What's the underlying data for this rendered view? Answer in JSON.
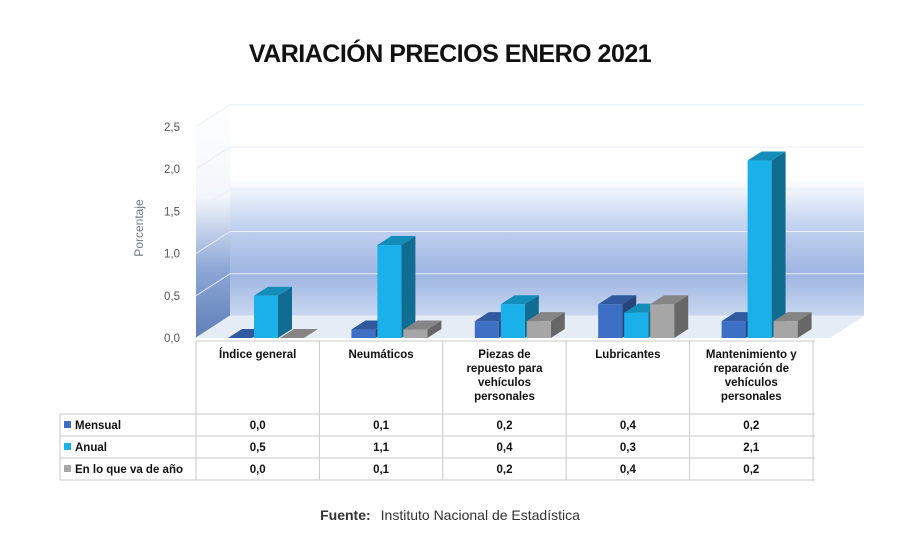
{
  "title": "VARIACIÓN PRECIOS ENERO 2021",
  "source_label": "Fuente:",
  "source_text": "Instituto Nacional de Estadística",
  "chart_data": {
    "type": "bar",
    "ylabel": "Porcentaje",
    "ylim": [
      0,
      2.5
    ],
    "yticks": [
      "0,0",
      "0,5",
      "1,0",
      "1,5",
      "2,0",
      "2,5"
    ],
    "categories": [
      "Índice general",
      "Neumáticos",
      "Piezas de repuesto para vehículos personales",
      "Lubricantes",
      "Mantenimiento y reparación de vehículos personales"
    ],
    "category_lines": [
      [
        "Índice general"
      ],
      [
        "Neumáticos"
      ],
      [
        "Piezas de",
        "repuesto para",
        "vehículos",
        "personales"
      ],
      [
        "Lubricantes"
      ],
      [
        "Mantenimiento y",
        "reparación de",
        "vehículos",
        "personales"
      ]
    ],
    "series": [
      {
        "name": "Mensual",
        "color": "#3d6fc4",
        "values": [
          0.0,
          0.1,
          0.2,
          0.4,
          0.2
        ],
        "labels": [
          "0,0",
          "0,1",
          "0,2",
          "0,4",
          "0,2"
        ]
      },
      {
        "name": "Anual",
        "color": "#1ab0ea",
        "values": [
          0.5,
          1.1,
          0.4,
          0.3,
          2.1
        ],
        "labels": [
          "0,5",
          "1,1",
          "0,4",
          "0,3",
          "2,1"
        ]
      },
      {
        "name": "En lo que va de año",
        "color": "#a6a6a6",
        "values": [
          0.0,
          0.1,
          0.2,
          0.4,
          0.2
        ],
        "labels": [
          "0,0",
          "0,1",
          "0,2",
          "0,4",
          "0,2"
        ]
      }
    ],
    "grid": true,
    "legend": "data-table"
  }
}
